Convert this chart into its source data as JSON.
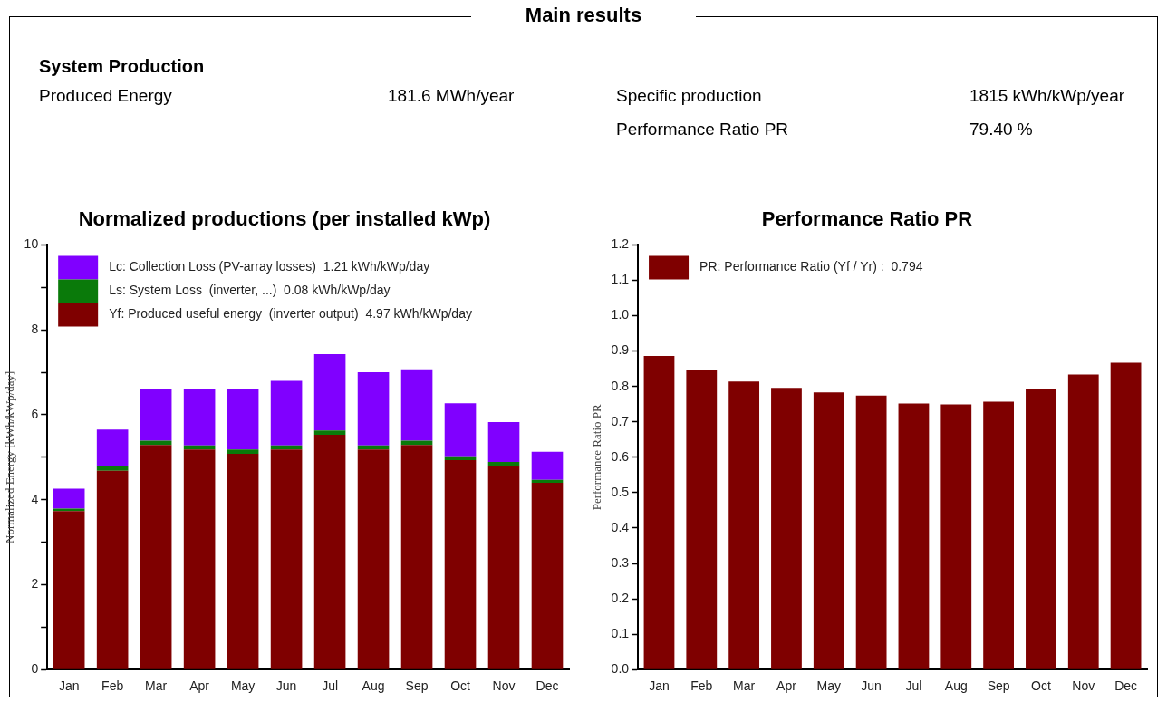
{
  "chart_data": [
    {
      "type": "other",
      "title": "Main results",
      "subtitle": "System Production",
      "annotations": [
        "Produced Energy",
        "181.6 MWh/year",
        "Specific production",
        "1815 kWh/kWp/year",
        "Performance Ratio PR",
        "79.40 %"
      ]
    },
    {
      "type": "bar",
      "title": "Normalized productions (per installed kWp)",
      "ylabel": "Normalized Energy [kWh/kWp/day]",
      "categories": [
        "Jan",
        "Feb",
        "Mar",
        "Apr",
        "May",
        "Jun",
        "Jul",
        "Aug",
        "Sep",
        "Oct",
        "Nov",
        "Dec"
      ],
      "stacked": true,
      "legend": "top left",
      "ylim": [
        0,
        10
      ],
      "yticks": [
        0,
        {
          "value": 1,
          "label": null
        },
        2,
        {
          "value": 3,
          "label": null
        },
        4,
        {
          "value": 5,
          "label": null
        },
        6,
        {
          "value": 7,
          "label": null
        },
        8,
        {
          "value": 9,
          "label": null
        },
        10
      ],
      "grid": false,
      "series": [
        {
          "name": "Yf: Produced useful energy  (inverter output)  4.97 kWh/kWp/day",
          "color": "#7f0000",
          "values": [
            3.73,
            4.68,
            5.29,
            5.18,
            5.08,
            5.18,
            5.53,
            5.18,
            5.29,
            4.93,
            4.8,
            4.4
          ]
        },
        {
          "name": "Ls: System Loss  (inverter, ...)  0.08 kWh/kWp/day",
          "color": "#0a7a0a",
          "values": [
            0.06,
            0.1,
            0.1,
            0.1,
            0.1,
            0.1,
            0.1,
            0.1,
            0.1,
            0.09,
            0.09,
            0.07
          ]
        },
        {
          "name": "Lc: Collection Loss (PV-array losses)  1.21 kWh/kWp/day",
          "color": "#8000ff",
          "values": [
            0.47,
            0.87,
            1.21,
            1.32,
            1.42,
            1.52,
            1.8,
            1.72,
            1.68,
            1.25,
            0.94,
            0.66
          ]
        }
      ]
    },
    {
      "type": "bar",
      "title": "Performance Ratio PR",
      "ylabel": "Performance Ratio PR",
      "categories": [
        "Jan",
        "Feb",
        "Mar",
        "Apr",
        "May",
        "Jun",
        "Jul",
        "Aug",
        "Sep",
        "Oct",
        "Nov",
        "Dec"
      ],
      "legend": "top left",
      "ylim": [
        0,
        1.2
      ],
      "yticks": [
        {
          "value": 0,
          "label": "0.0"
        },
        0.1,
        0.2,
        0.3,
        0.4,
        0.5,
        0.6,
        0.7,
        0.8,
        0.9,
        {
          "value": 1,
          "label": "1.0"
        },
        1.1,
        1.2
      ],
      "grid": false,
      "series": [
        {
          "name": "PR: Performance Ratio (Yf / Yr) :  0.794",
          "color": "#7f0000",
          "values": [
            0.886,
            0.848,
            0.814,
            0.796,
            0.783,
            0.774,
            0.752,
            0.749,
            0.757,
            0.794,
            0.834,
            0.867
          ]
        }
      ]
    }
  ]
}
